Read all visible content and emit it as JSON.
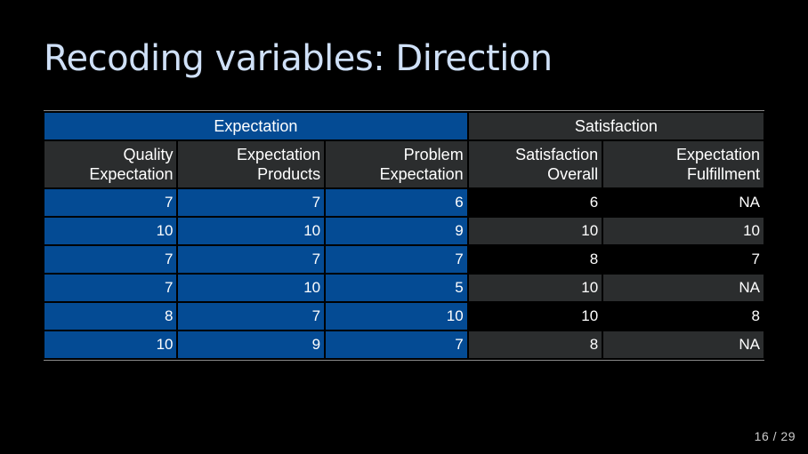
{
  "slide": {
    "title": "Recoding variables: Direction",
    "page_number": "16 / 29"
  },
  "table": {
    "groups": [
      {
        "label": "Expectation"
      },
      {
        "label": "Satisfaction"
      }
    ],
    "columns": [
      {
        "line1": "Quality",
        "line2": "Expectation"
      },
      {
        "line1": "Expectation",
        "line2": "Products"
      },
      {
        "line1": "Problem",
        "line2": "Expectation"
      },
      {
        "line1": "Satisfaction",
        "line2": "Overall"
      },
      {
        "line1": "Expectation",
        "line2": "Fulfillment"
      }
    ],
    "rows": [
      [
        "7",
        "7",
        "6",
        "6",
        "NA"
      ],
      [
        "10",
        "10",
        "9",
        "10",
        "10"
      ],
      [
        "7",
        "7",
        "7",
        "8",
        "7"
      ],
      [
        "7",
        "10",
        "5",
        "10",
        "NA"
      ],
      [
        "8",
        "7",
        "10",
        "10",
        "8"
      ],
      [
        "10",
        "9",
        "7",
        "8",
        "NA"
      ]
    ]
  },
  "colors": {
    "expectation_fill": "#044b94",
    "satisfaction_header_fill": "#2b2d2e",
    "title_color": "#cfe0f7",
    "background": "#000000"
  }
}
